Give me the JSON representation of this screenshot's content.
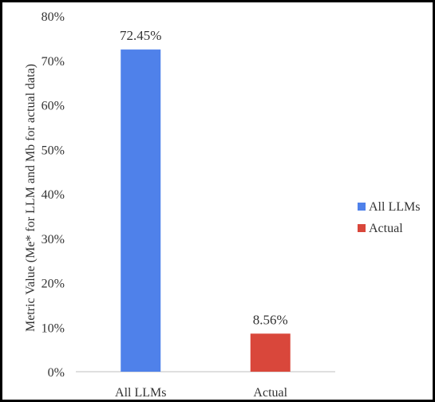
{
  "chart_data": {
    "type": "bar",
    "categories": [
      "All LLMs",
      "Actual"
    ],
    "values": [
      72.45,
      8.56
    ],
    "data_labels": [
      "72.45%",
      "8.56%"
    ],
    "colors": [
      "#4f81ea",
      "#d9473b"
    ],
    "ylabel": "Metric Value (Me* for LLM and Mb for actual data)",
    "ylim": [
      0,
      80
    ],
    "y_ticks": [
      0,
      10,
      20,
      30,
      40,
      50,
      60,
      70,
      80
    ],
    "y_tick_labels": [
      "0%",
      "10%",
      "20%",
      "30%",
      "40%",
      "50%",
      "60%",
      "70%",
      "80%"
    ],
    "grid": false,
    "legend": {
      "placement": "right",
      "entries": [
        "All LLMs",
        "Actual"
      ]
    }
  }
}
